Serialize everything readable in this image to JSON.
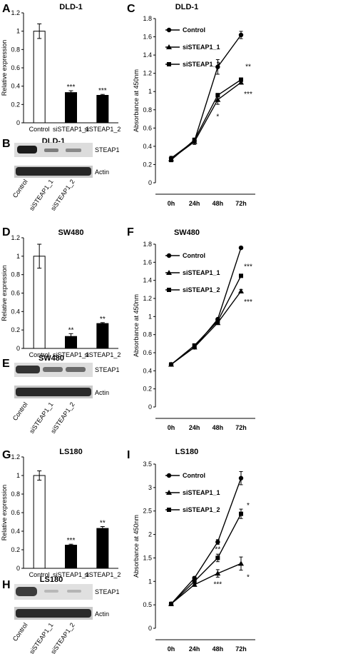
{
  "panel_letters": [
    "A",
    "B",
    "C",
    "D",
    "E",
    "F",
    "G",
    "H",
    "I"
  ],
  "blots": [
    {
      "title": "DLD-1",
      "labels": [
        "STEAP1",
        "Actin"
      ],
      "lanes": [
        "Control",
        "siSTEAP1_1",
        "siSTEAP1_2"
      ]
    },
    {
      "title": "SW480",
      "labels": [
        "STEAP1",
        "Actin"
      ],
      "lanes": [
        "Control",
        "siSTEAP1_1",
        "siSTEAP1_2"
      ]
    },
    {
      "title": "LS180",
      "labels": [
        "STEAP1",
        "Actin"
      ],
      "lanes": [
        "Control",
        "siSTEAP1_1",
        "siSTEAP1_2"
      ]
    }
  ],
  "colors": {
    "axis": "#000000",
    "bar_control": "#ffffff",
    "bar_knockdown": "#000000"
  },
  "chart_data": [
    {
      "type": "bar",
      "title": "DLD-1",
      "ylabel": "Relative expression",
      "categories": [
        "Control",
        "siSTEAP1_1",
        "siSTEAP1_2"
      ],
      "values": [
        1.0,
        0.33,
        0.3
      ],
      "errors": [
        0.08,
        0.02,
        0.01
      ],
      "annotations": [
        "",
        "***",
        "***"
      ],
      "ylim": [
        0,
        1.2
      ],
      "yticks": [
        "0",
        "0.2",
        "0.4",
        "0.6",
        "0.8",
        "1",
        "1.2"
      ]
    },
    {
      "type": "line",
      "title": "DLD-1",
      "ylabel": "Absorbance at 450nm",
      "categories": [
        "0h",
        "24h",
        "48h",
        "72h"
      ],
      "ylim": [
        0,
        1.8
      ],
      "yticks": [
        "0",
        "0.2",
        "0.4",
        "0.6",
        "0.8",
        "1",
        "1.2",
        "1.4",
        "1.6",
        "1.8"
      ],
      "legend": "top-left",
      "series": [
        {
          "name": "Control",
          "marker": "circle",
          "values": [
            0.27,
            0.46,
            1.27,
            1.62
          ],
          "errors": [
            0.02,
            0.03,
            0.08,
            0.04
          ]
        },
        {
          "name": "siSTEAP1_1",
          "marker": "triangle",
          "values": [
            0.26,
            0.45,
            0.91,
            1.1
          ],
          "errors": [
            0.02,
            0.03,
            0.05,
            0.02
          ]
        },
        {
          "name": "siSTEAP1_2",
          "marker": "square",
          "values": [
            0.25,
            0.47,
            0.96,
            1.13
          ],
          "errors": [
            0.02,
            0.02,
            0.02,
            0.02
          ]
        }
      ],
      "annotations": [
        {
          "x": "48h",
          "y": 0.73,
          "text": "*"
        },
        {
          "x": "72h",
          "y": 1.28,
          "text": "**"
        },
        {
          "x": "72h",
          "y": 0.98,
          "text": "***"
        }
      ]
    },
    {
      "type": "bar",
      "title": "SW480",
      "ylabel": "Relative expression",
      "categories": [
        "Control",
        "siSTEAP1_1",
        "siSTEAP1_2"
      ],
      "values": [
        1.0,
        0.13,
        0.27
      ],
      "errors": [
        0.13,
        0.03,
        0.01
      ],
      "annotations": [
        "",
        "**",
        "**"
      ],
      "ylim": [
        0,
        1.2
      ],
      "yticks": [
        "0",
        "0.2",
        "0.4",
        "0.6",
        "0.8",
        "1",
        "1.2"
      ]
    },
    {
      "type": "line",
      "title": "SW480",
      "ylabel": "Absorbance at 450nm",
      "categories": [
        "0h",
        "24h",
        "48h",
        "72h"
      ],
      "ylim": [
        0,
        1.8
      ],
      "yticks": [
        "0",
        "0.2",
        "0.4",
        "0.6",
        "0.8",
        "1",
        "1.2",
        "1.4",
        "1.6",
        "1.8"
      ],
      "legend": "top-left",
      "series": [
        {
          "name": "Control",
          "marker": "circle",
          "values": [
            0.47,
            0.66,
            0.97,
            1.76
          ],
          "errors": [
            0.01,
            0.01,
            0.01,
            0.01
          ]
        },
        {
          "name": "siSTEAP1_1",
          "marker": "triangle",
          "values": [
            0.47,
            0.66,
            0.93,
            1.28
          ],
          "errors": [
            0.01,
            0.01,
            0.01,
            0.02
          ]
        },
        {
          "name": "siSTEAP1_2",
          "marker": "square",
          "values": [
            0.47,
            0.68,
            0.95,
            1.45
          ],
          "errors": [
            0.01,
            0.01,
            0.01,
            0.01
          ]
        }
      ],
      "annotations": [
        {
          "x": "72h",
          "y": 1.56,
          "text": "***"
        },
        {
          "x": "72h",
          "y": 1.17,
          "text": "***"
        }
      ]
    },
    {
      "type": "bar",
      "title": "LS180",
      "ylabel": "Relative expression",
      "categories": [
        "Control",
        "siSTEAP1_1",
        "siSTEAP1_2"
      ],
      "values": [
        1.0,
        0.25,
        0.43
      ],
      "errors": [
        0.05,
        0.01,
        0.02
      ],
      "annotations": [
        "",
        "***",
        "**"
      ],
      "ylim": [
        0,
        1.2
      ],
      "yticks": [
        "0",
        "0.2",
        "0.4",
        "0.6",
        "0.8",
        "1",
        "1.2"
      ]
    },
    {
      "type": "line",
      "title": "LS180",
      "ylabel": "Absorbance at 450nm",
      "categories": [
        "0h",
        "24h",
        "48h",
        "72h"
      ],
      "ylim": [
        0,
        3.5
      ],
      "yticks": [
        "0",
        "0.5",
        "1",
        "1.5",
        "2",
        "2.5",
        "3",
        "3.5"
      ],
      "legend": "top-left",
      "series": [
        {
          "name": "Control",
          "marker": "circle",
          "values": [
            0.52,
            1.07,
            1.84,
            3.2
          ],
          "errors": [
            0.02,
            0.03,
            0.05,
            0.14
          ]
        },
        {
          "name": "siSTEAP1_1",
          "marker": "triangle",
          "values": [
            0.52,
            0.93,
            1.17,
            1.38
          ],
          "errors": [
            0.02,
            0.03,
            0.08,
            0.14
          ]
        },
        {
          "name": "siSTEAP1_2",
          "marker": "square",
          "values": [
            0.52,
            1.0,
            1.5,
            2.44
          ],
          "errors": [
            0.02,
            0.03,
            0.08,
            0.1
          ]
        }
      ],
      "annotations": [
        {
          "x": "48h",
          "y": 1.7,
          "text": "**"
        },
        {
          "x": "48h",
          "y": 0.95,
          "text": "***"
        },
        {
          "x": "72h",
          "y": 2.63,
          "text": "*"
        },
        {
          "x": "72h",
          "y": 1.1,
          "text": "*"
        }
      ]
    }
  ]
}
